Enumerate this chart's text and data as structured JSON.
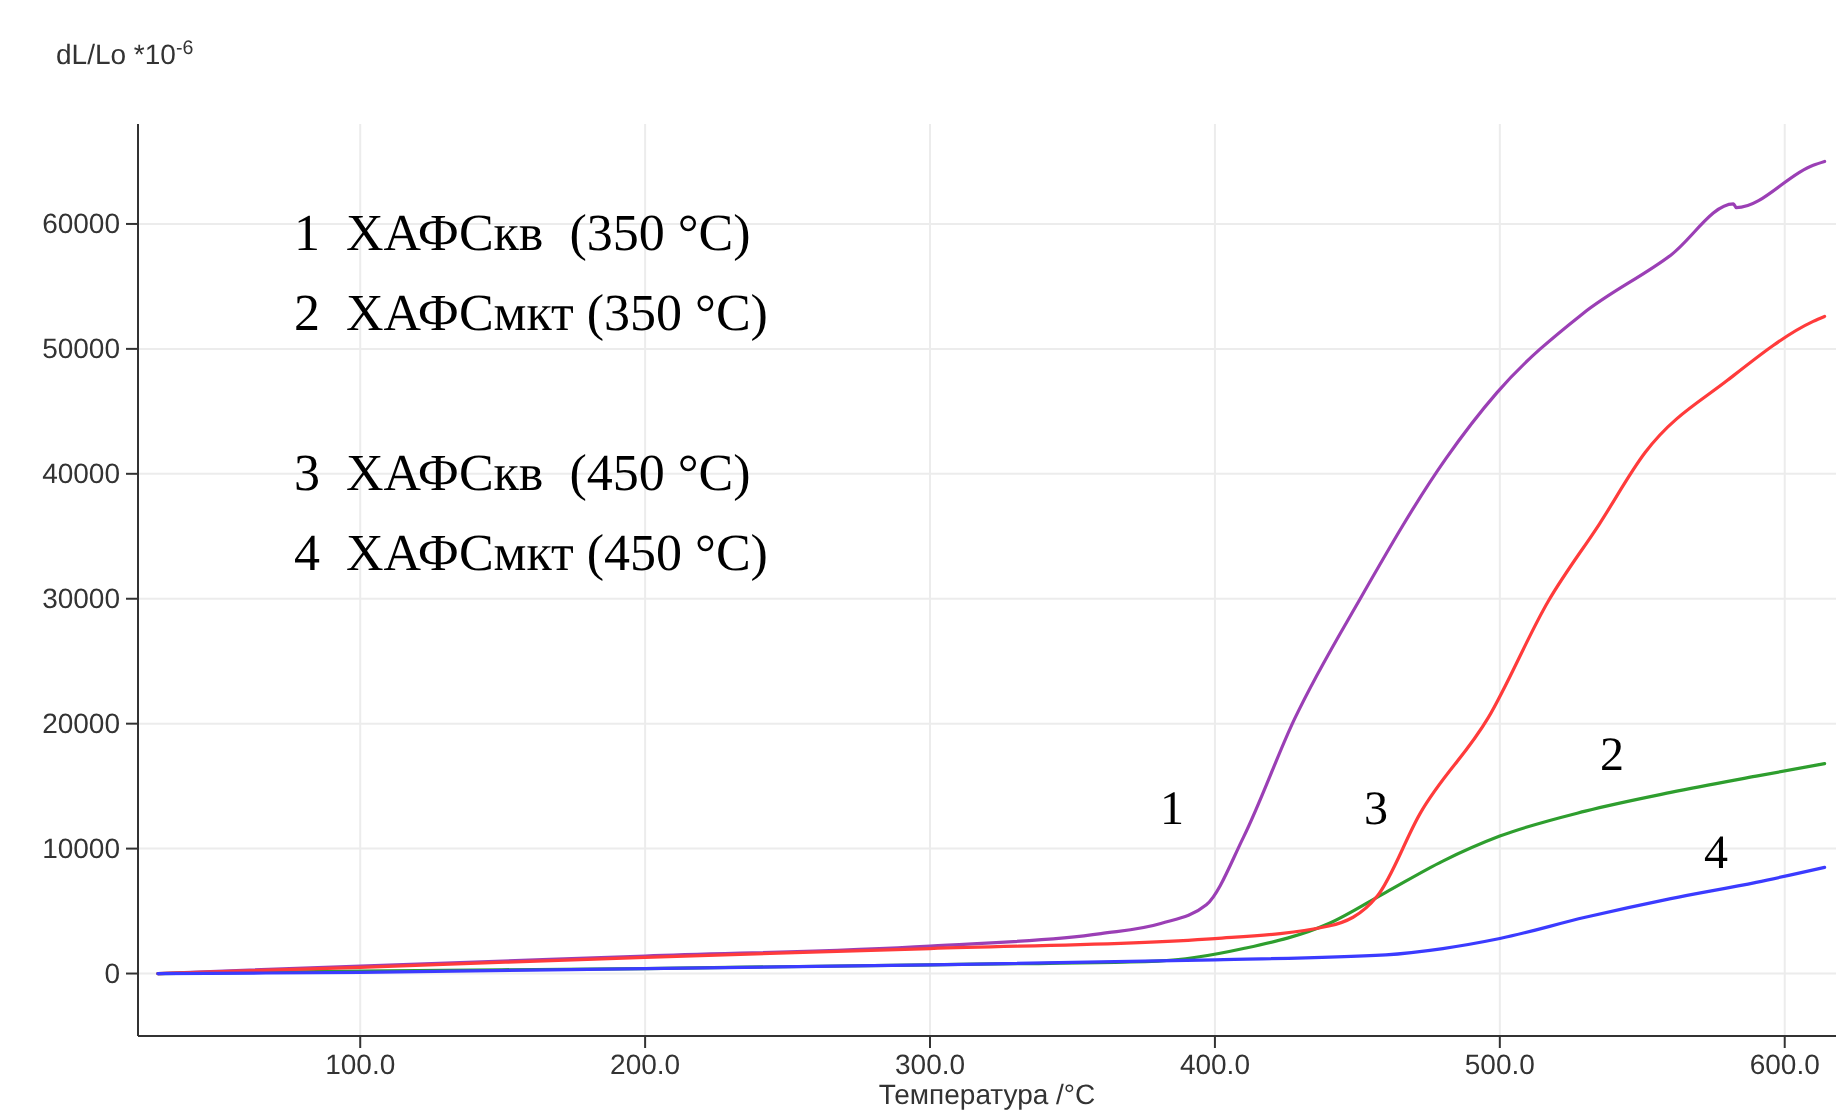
{
  "chart_data": {
    "type": "line",
    "xlabel": "Температура /°C",
    "ylabel": "dL/Lo *10$^{-6}$",
    "xlim": [
      22,
      618
    ],
    "ylim": [
      -5000,
      68000
    ],
    "xticks": [
      {
        "value": 100,
        "label": "100.0"
      },
      {
        "value": 200,
        "label": "200.0"
      },
      {
        "value": 300,
        "label": "300.0"
      },
      {
        "value": 400,
        "label": "400.0"
      },
      {
        "value": 500,
        "label": "500.0"
      },
      {
        "value": 600,
        "label": "600.0"
      }
    ],
    "yticks": [
      0,
      10000,
      20000,
      30000,
      40000,
      50000,
      60000
    ],
    "grid": true,
    "marker": "none",
    "line_style": "solid",
    "series": [
      {
        "color": "#9b3fb5",
        "x": [
          29,
          100,
          200,
          300,
          360,
          381,
          397,
          410,
          428,
          451,
          481,
          499,
          529,
          560,
          582,
          583,
          610,
          614
        ],
        "values": [
          0,
          600,
          1400,
          2200,
          3200,
          4000,
          5500,
          10900,
          20400,
          30000,
          41200,
          46500,
          52800,
          57500,
          61600,
          61300,
          64700,
          65000
        ]
      },
      {
        "color": "#2e9e2e",
        "x": [
          29,
          100,
          200,
          300,
          380,
          410,
          440,
          460,
          480,
          500,
          530,
          560,
          590,
          614
        ],
        "values": [
          0,
          200,
          400,
          700,
          1000,
          2000,
          4000,
          6500,
          9000,
          11000,
          13000,
          14500,
          15800,
          16800
        ]
      },
      {
        "color": "#ff3b3b",
        "x": [
          29,
          100,
          200,
          300,
          400,
          440,
          457,
          472,
          496,
          517,
          535,
          551,
          580,
          610,
          614
        ],
        "values": [
          0,
          500,
          1300,
          2000,
          2800,
          3800,
          6200,
          12800,
          20500,
          29800,
          36000,
          41700,
          47500,
          52200,
          52600
        ]
      },
      {
        "color": "#3b3bff",
        "x": [
          29,
          100,
          200,
          300,
          400,
          460,
          480,
          500,
          530,
          560,
          590,
          614
        ],
        "values": [
          0,
          100,
          400,
          700,
          1100,
          1500,
          2000,
          2800,
          4500,
          6000,
          7300,
          8500
        ]
      }
    ],
    "annotations": [
      "1  ХАФСкв  (350 °C)",
      "2  ХАФСмкт (350 °C)",
      "3  ХАФСкв  (450 °C)",
      "4  ХАФСмкт (450 °C)",
      "1",
      "3",
      "2",
      "4"
    ]
  }
}
